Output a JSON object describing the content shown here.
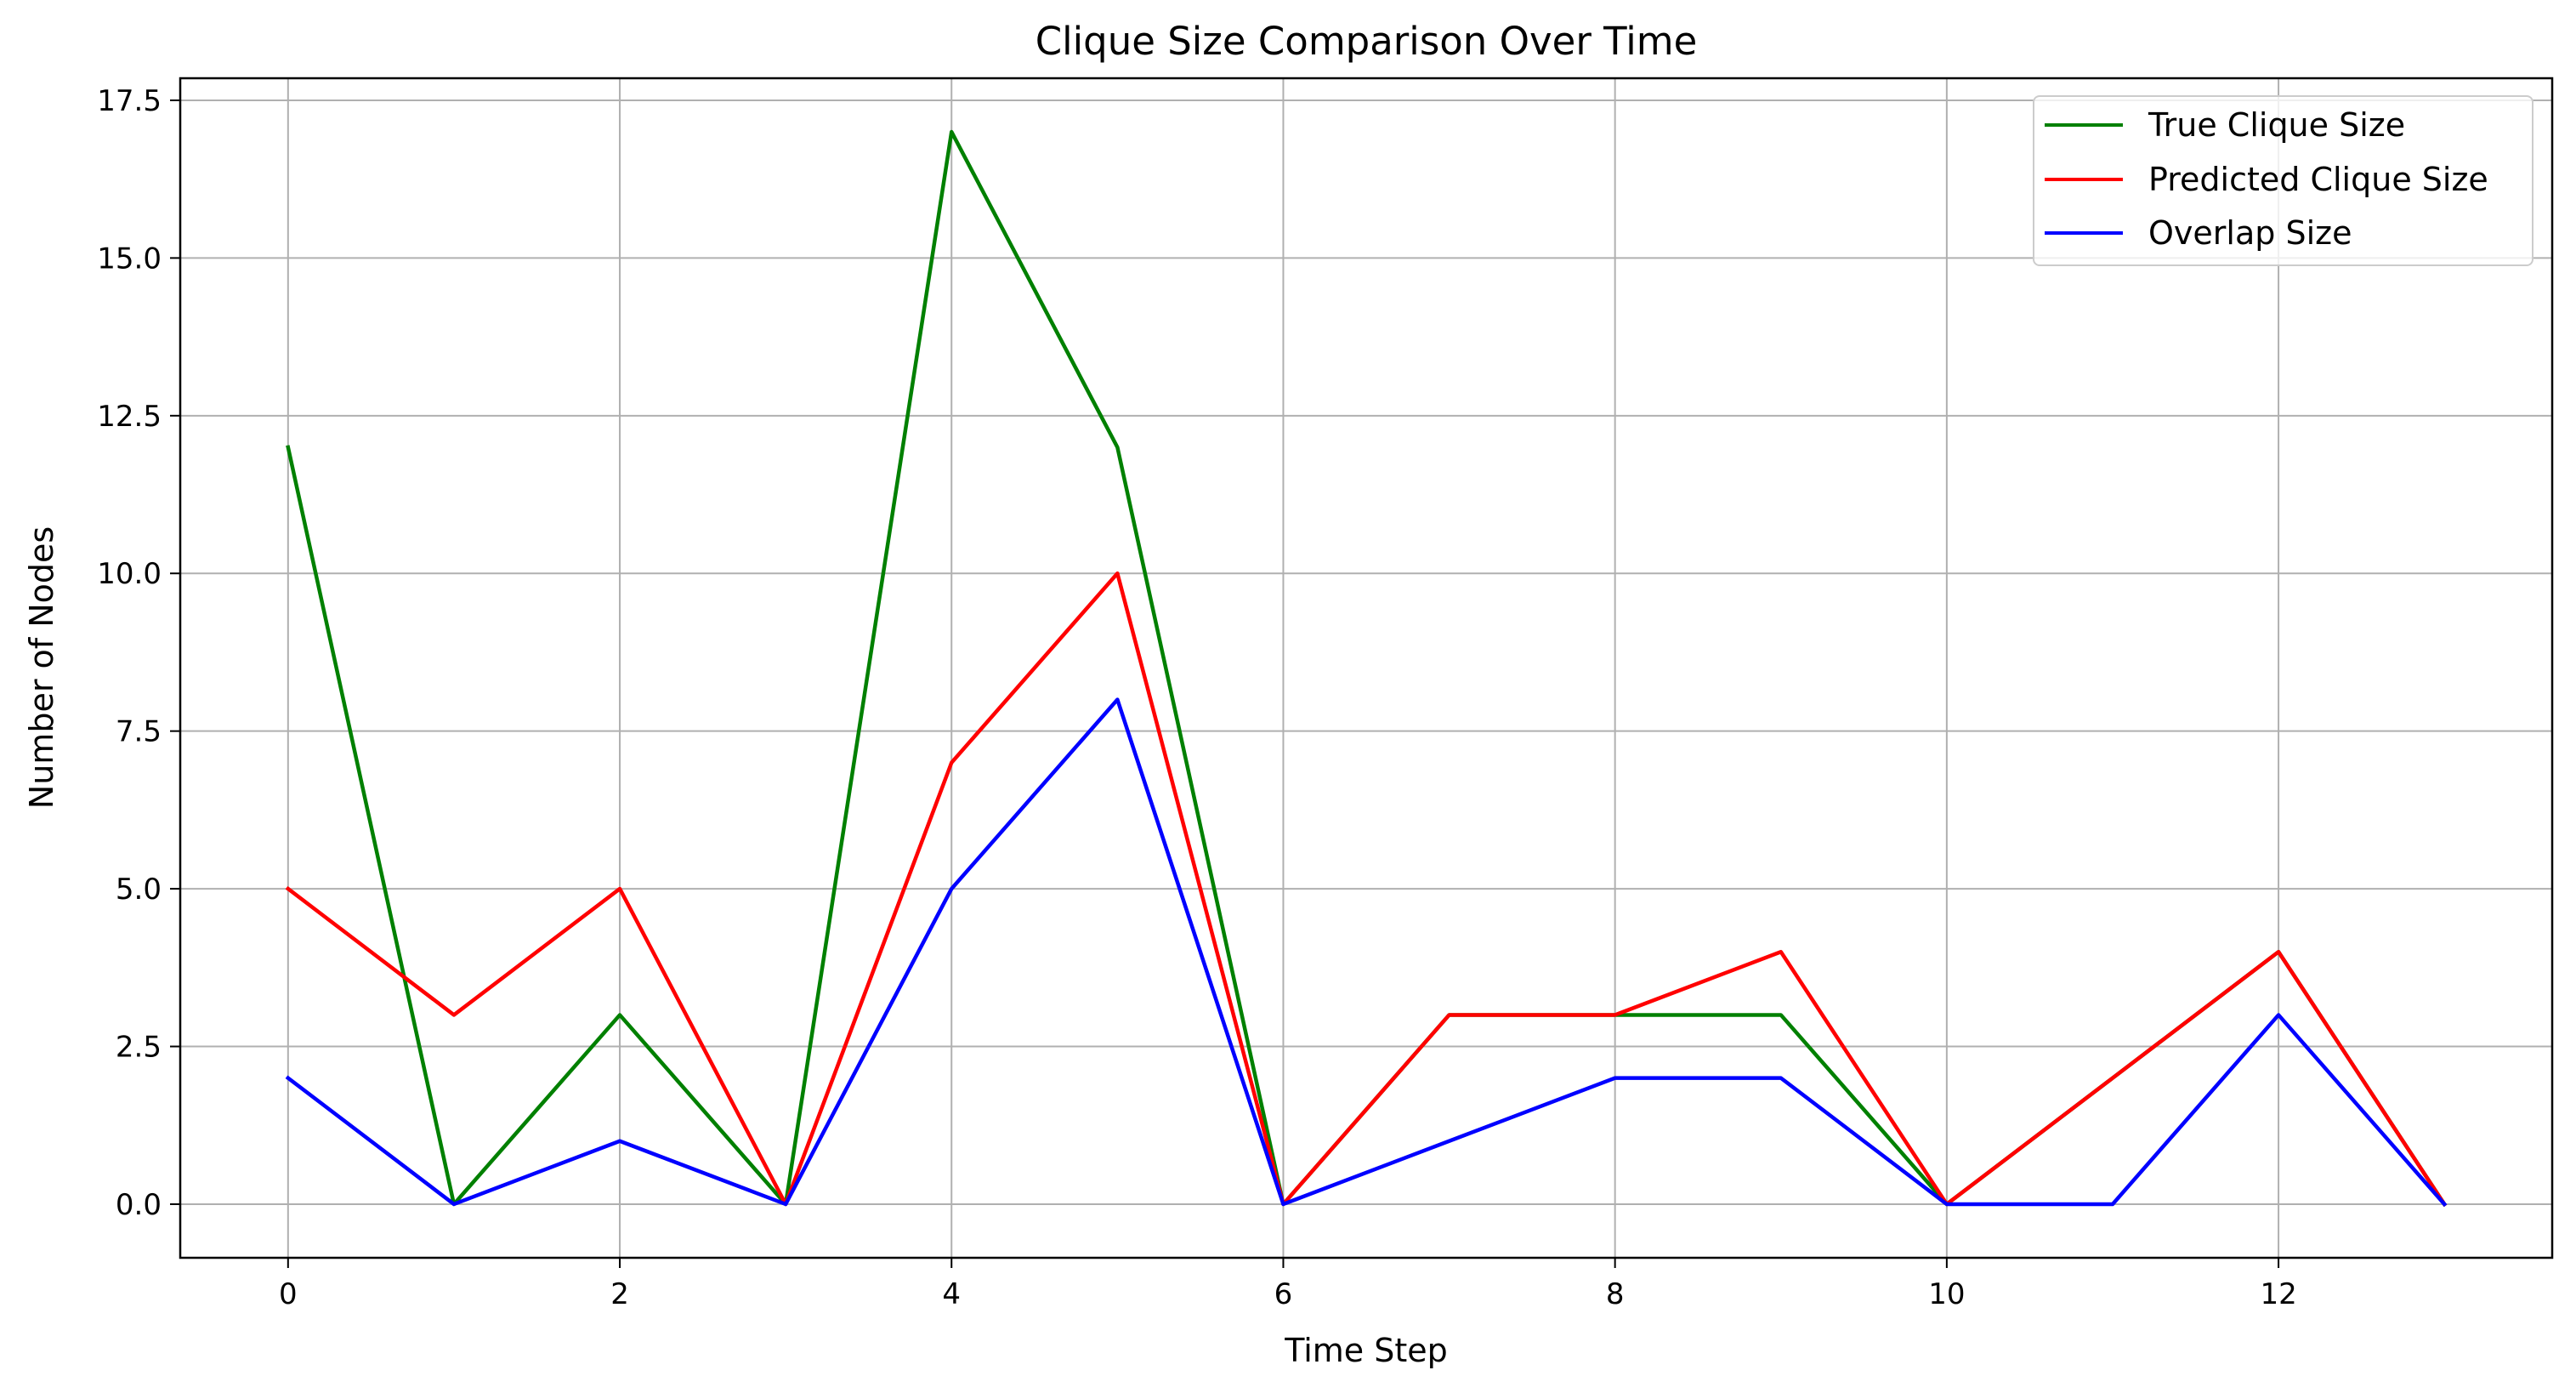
{
  "chart_data": {
    "type": "line",
    "title": "Clique Size Comparison Over Time",
    "xlabel": "Time Step",
    "ylabel": "Number of Nodes",
    "x": [
      0,
      1,
      2,
      3,
      4,
      5,
      6,
      7,
      8,
      9,
      10,
      11,
      12,
      13
    ],
    "xlim": [
      -0.65,
      13.65
    ],
    "ylim": [
      -0.85,
      17.85
    ],
    "xticks": [
      0,
      2,
      4,
      6,
      8,
      10,
      12
    ],
    "xtick_labels": [
      "0",
      "2",
      "4",
      "6",
      "8",
      "10",
      "12"
    ],
    "yticks": [
      0,
      2.5,
      5,
      7.5,
      10,
      12.5,
      15,
      17.5
    ],
    "ytick_labels": [
      "0.0",
      "2.5",
      "5.0",
      "7.5",
      "10.0",
      "12.5",
      "15.0",
      "17.5"
    ],
    "grid": true,
    "legend_position": "top-right",
    "series": [
      {
        "name": "True Clique Size",
        "color": "#008000",
        "values": [
          12,
          0,
          3,
          0,
          17,
          12,
          0,
          3,
          3,
          3,
          0,
          2,
          4,
          0
        ]
      },
      {
        "name": "Predicted Clique Size",
        "color": "#ff0000",
        "values": [
          5,
          3,
          5,
          0,
          7,
          10,
          0,
          3,
          3,
          4,
          0,
          2,
          4,
          0
        ]
      },
      {
        "name": "Overlap Size",
        "color": "#0000ff",
        "values": [
          2,
          0,
          1,
          0,
          5,
          8,
          0,
          1,
          2,
          2,
          0,
          0,
          3,
          0
        ]
      }
    ]
  }
}
